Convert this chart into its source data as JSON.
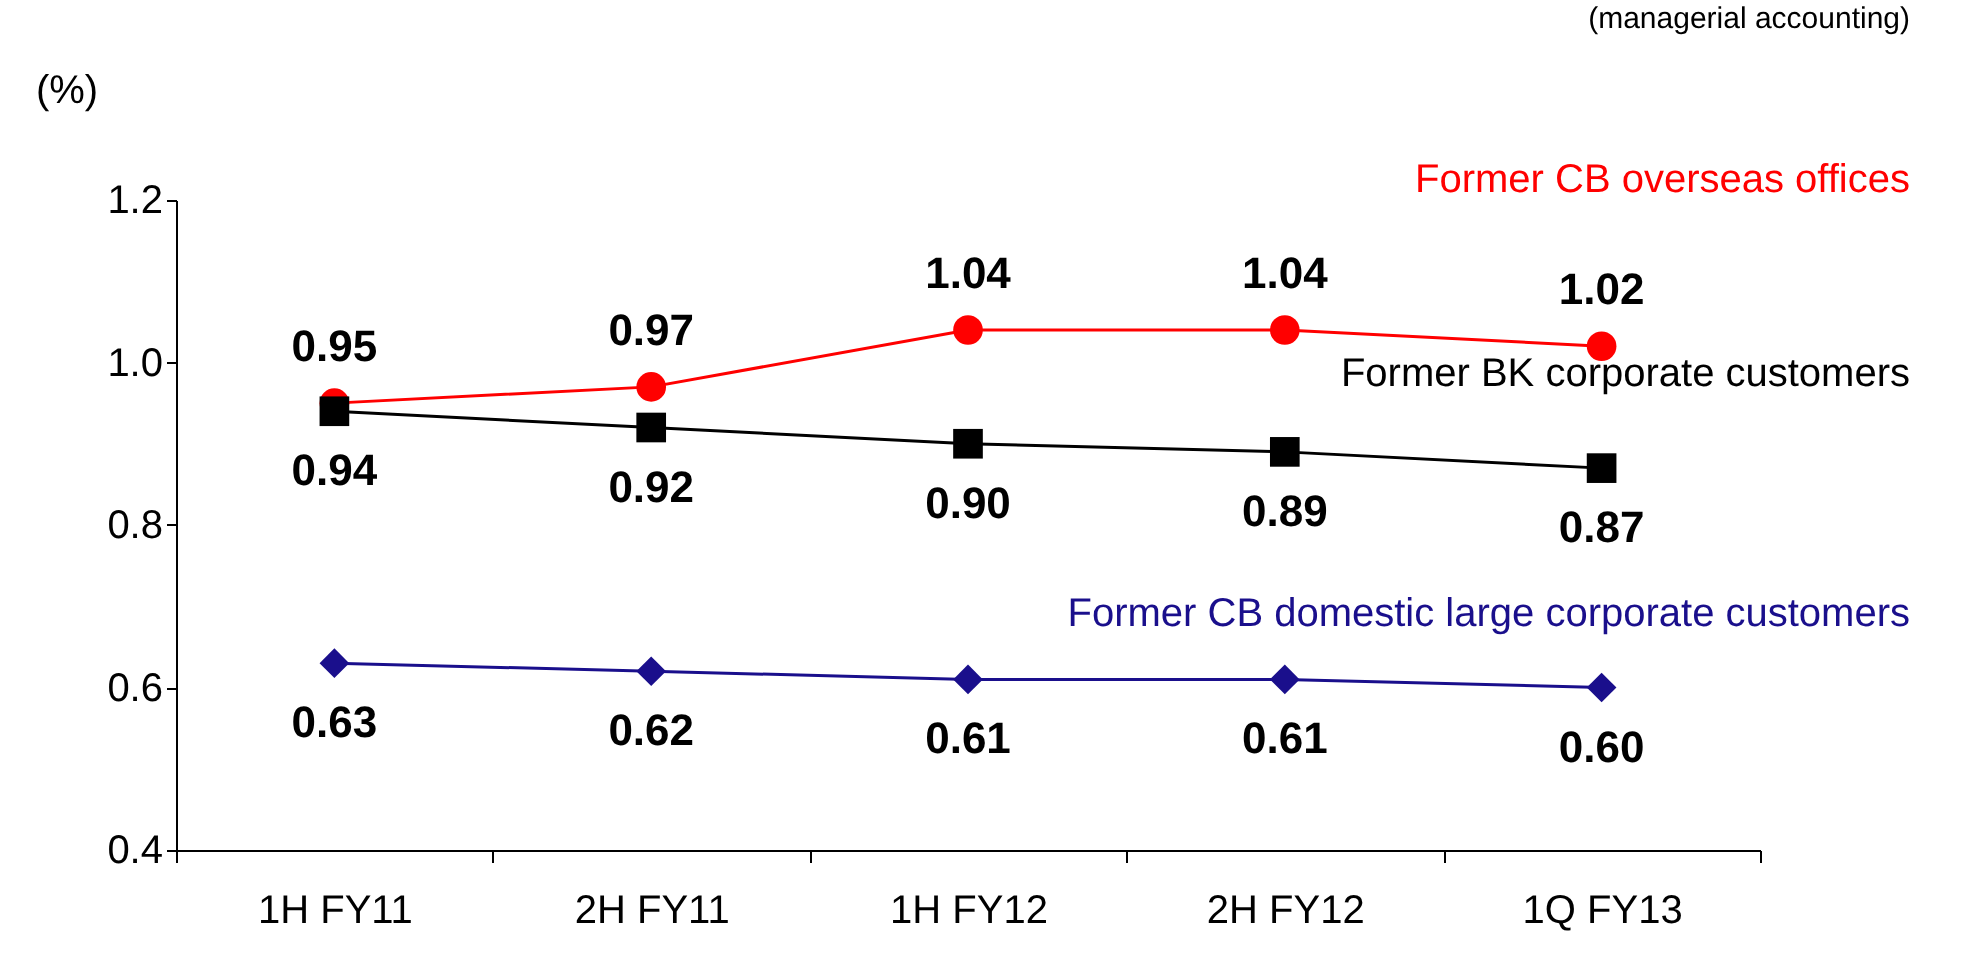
{
  "chart_data": {
    "type": "line",
    "ylabel": "(%)",
    "annotations": [
      "(managerial accounting)"
    ],
    "categories": [
      "1H FY11",
      "2H FY11",
      "1H FY12",
      "2H FY12",
      "1Q FY13"
    ],
    "series": [
      {
        "name": "Former CB overseas offices",
        "color": "#ff0000",
        "marker": "circle",
        "values": [
          0.95,
          0.97,
          1.04,
          1.04,
          1.02
        ],
        "value_labels": [
          "0.95",
          "0.97",
          "1.04",
          "1.04",
          "1.02"
        ]
      },
      {
        "name": "Former BK corporate customers",
        "color": "#000000",
        "marker": "square",
        "values": [
          0.94,
          0.92,
          0.9,
          0.89,
          0.87
        ],
        "value_labels": [
          "0.94",
          "0.92",
          "0.90",
          "0.89",
          "0.87"
        ]
      },
      {
        "name": "Former CB domestic large corporate customers",
        "color": "#1a0f8c",
        "marker": "diamond",
        "values": [
          0.63,
          0.62,
          0.61,
          0.61,
          0.6
        ],
        "value_labels": [
          "0.63",
          "0.62",
          "0.61",
          "0.61",
          "0.60"
        ]
      }
    ],
    "ylim": [
      0.4,
      1.2
    ],
    "yticks": [
      0.4,
      0.6,
      0.8,
      {
        "value": 1,
        "label": "1.0"
      },
      1.2
    ],
    "grid": false,
    "legend": false,
    "line_style": "solid"
  }
}
